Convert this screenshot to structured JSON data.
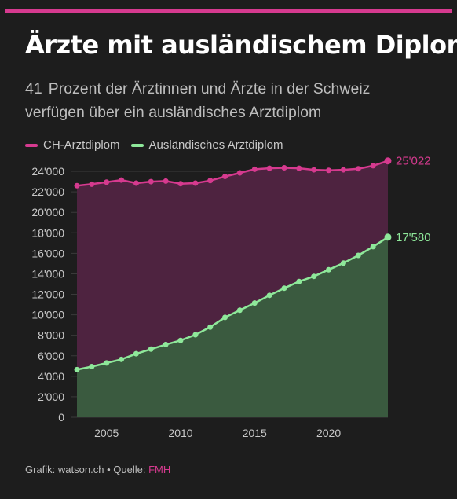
{
  "header": {
    "title": "Ärzte mit ausländischem Diplom",
    "subtitle_number": "41",
    "subtitle_text": "Prozent der Ärztinnen und Ärzte in der Schweiz verfügen über ein ausländisches Arztdiplom"
  },
  "colors": {
    "accent": "#d63a8f",
    "ch_line": "#d63a8f",
    "ch_area": "#4e2340",
    "foreign_line": "#8ee89a",
    "foreign_area": "#3a5a3f",
    "background": "#1d1d1d"
  },
  "footer": {
    "credit": "Grafik: watson.ch",
    "separator": "•",
    "source_label": "Quelle:",
    "source_name": "FMH"
  },
  "chart_data": {
    "type": "area",
    "title": "Ärzte mit ausländischem Diplom",
    "x": [
      2003,
      2004,
      2005,
      2006,
      2007,
      2008,
      2009,
      2010,
      2011,
      2012,
      2013,
      2014,
      2015,
      2016,
      2017,
      2018,
      2019,
      2020,
      2021,
      2022,
      2023,
      2024
    ],
    "x_ticks": [
      2005,
      2010,
      2015,
      2020
    ],
    "x_tick_labels": [
      "2005",
      "2010",
      "2015",
      "2020"
    ],
    "ylim": [
      0,
      25000
    ],
    "y_ticks": [
      0,
      2000,
      4000,
      6000,
      8000,
      10000,
      12000,
      14000,
      16000,
      18000,
      20000,
      22000,
      24000
    ],
    "y_tick_labels": [
      "0",
      "2'000",
      "4'000",
      "6'000",
      "8'000",
      "10'000",
      "12'000",
      "14'000",
      "16'000",
      "18'000",
      "20'000",
      "22'000",
      "24'000"
    ],
    "grid": "horizontal",
    "legend": "top-left",
    "series": [
      {
        "name": "CH-Arztdiplom",
        "values": [
          22600,
          22750,
          22950,
          23150,
          22850,
          23000,
          23050,
          22800,
          22850,
          23100,
          23500,
          23850,
          24200,
          24300,
          24350,
          24300,
          24150,
          24100,
          24150,
          24250,
          24550,
          25022
        ],
        "end_label": "25'022"
      },
      {
        "name": "Ausländisches Arztdiplom",
        "values": [
          4650,
          4950,
          5300,
          5650,
          6200,
          6650,
          7100,
          7500,
          8050,
          8800,
          9750,
          10450,
          11150,
          11900,
          12600,
          13250,
          13750,
          14400,
          15050,
          15800,
          16650,
          17580
        ],
        "end_label": "17'580"
      }
    ]
  }
}
